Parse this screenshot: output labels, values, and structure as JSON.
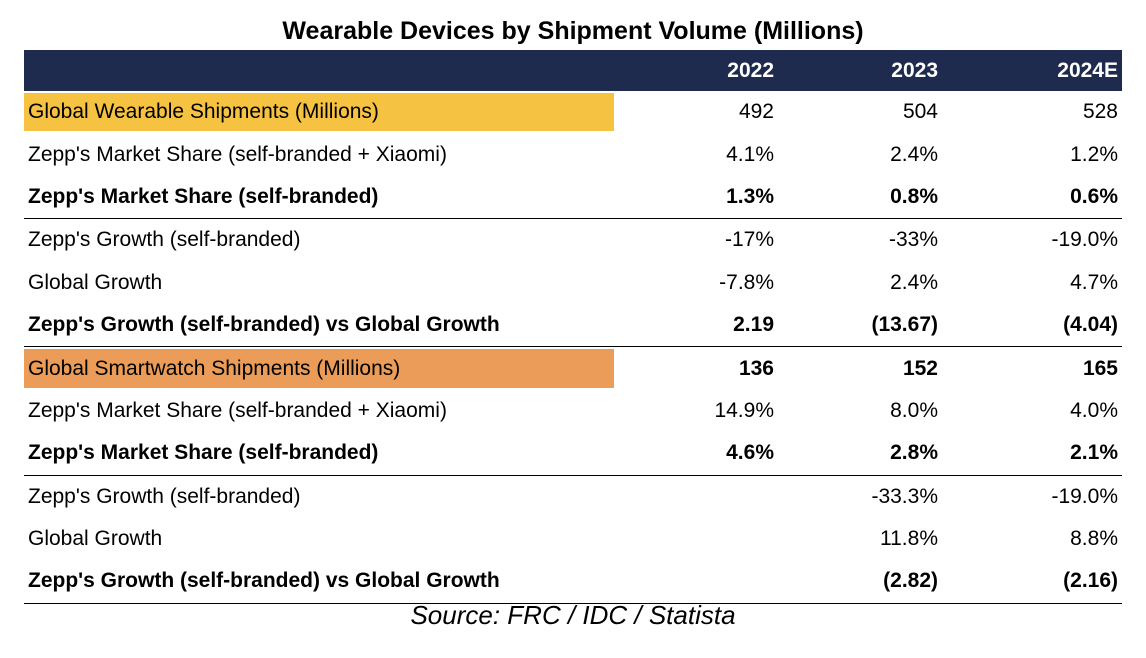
{
  "title": "Wearable Devices by Shipment Volume (Millions)",
  "colors": {
    "header_bg": "#1f2b4e",
    "highlight_wearable": "#f5c242",
    "highlight_smartwatch": "#eb9c58"
  },
  "columns": [
    "2022",
    "2023",
    "2024E"
  ],
  "rows": [
    {
      "label": "Global Wearable Shipments (Millions)",
      "values": [
        "492",
        "504",
        "528"
      ],
      "bold": false,
      "highlight": "#f5c242",
      "divider": false
    },
    {
      "label": "Zepp's Market Share (self-branded + Xiaomi)",
      "values": [
        "4.1%",
        "2.4%",
        "1.2%"
      ],
      "bold": false,
      "highlight": "",
      "divider": false
    },
    {
      "label": "Zepp's Market Share (self-branded)",
      "values": [
        "1.3%",
        "0.8%",
        "0.6%"
      ],
      "bold": true,
      "highlight": "",
      "divider": true
    },
    {
      "label": "Zepp's Growth (self-branded)",
      "values": [
        "-17%",
        "-33%",
        "-19.0%"
      ],
      "bold": false,
      "highlight": "",
      "divider": false
    },
    {
      "label": "Global Growth",
      "values": [
        "-7.8%",
        "2.4%",
        "4.7%"
      ],
      "bold": false,
      "highlight": "",
      "divider": false
    },
    {
      "label": "Zepp's Growth (self-branded) vs Global Growth",
      "values": [
        "2.19",
        "(13.67)",
        "(4.04)"
      ],
      "bold": true,
      "highlight": "",
      "divider": true
    },
    {
      "label": "Global Smartwatch Shipments  (Millions)",
      "values": [
        "136",
        "152",
        "165"
      ],
      "bold": false,
      "boldValues": true,
      "highlight": "#eb9c58",
      "divider": false
    },
    {
      "label": "Zepp's Market Share (self-branded + Xiaomi)",
      "values": [
        "14.9%",
        "8.0%",
        "4.0%"
      ],
      "bold": false,
      "highlight": "",
      "divider": false
    },
    {
      "label": "Zepp's Market Share (self-branded)",
      "values": [
        "4.6%",
        "2.8%",
        "2.1%"
      ],
      "bold": true,
      "highlight": "",
      "divider": true
    },
    {
      "label": "Zepp's Growth (self-branded)",
      "values": [
        "",
        "-33.3%",
        "-19.0%"
      ],
      "bold": false,
      "highlight": "",
      "divider": false
    },
    {
      "label": "Global Growth",
      "values": [
        "",
        "11.8%",
        "8.8%"
      ],
      "bold": false,
      "highlight": "",
      "divider": false
    },
    {
      "label": "Zepp's Growth (self-branded) vs Global Growth",
      "values": [
        "",
        "(2.82)",
        "(2.16)"
      ],
      "bold": true,
      "highlight": "",
      "divider": true
    }
  ],
  "source": "Source: FRC / IDC / Statista"
}
